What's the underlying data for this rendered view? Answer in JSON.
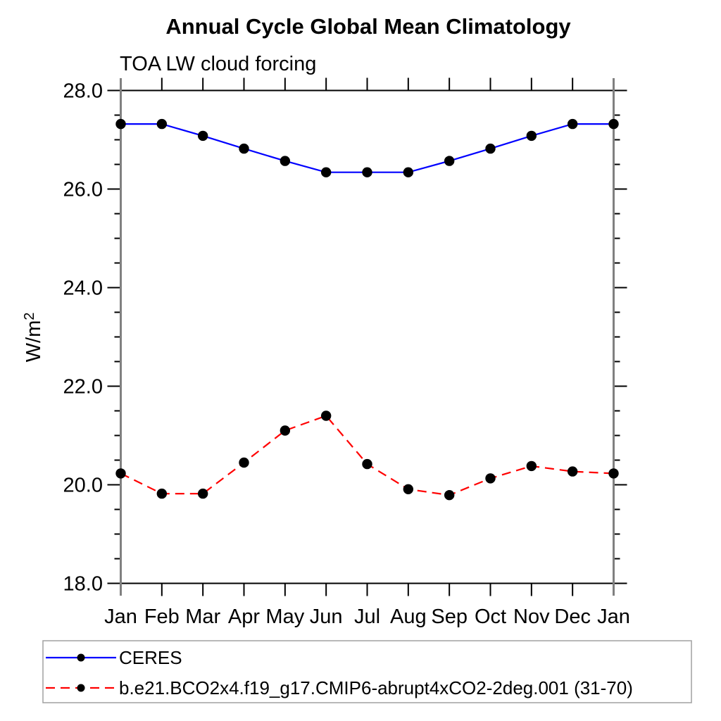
{
  "chart_data": {
    "type": "line",
    "title": "Annual Cycle Global Mean Climatology",
    "subtitle": "TOA LW cloud forcing",
    "ylabel": {
      "base": "W/m",
      "sup": "2"
    },
    "categories": [
      "Jan",
      "Feb",
      "Mar",
      "Apr",
      "May",
      "Jun",
      "Jul",
      "Aug",
      "Sep",
      "Oct",
      "Nov",
      "Dec",
      "Jan"
    ],
    "ylim": [
      18.0,
      28.0
    ],
    "ytick_major": [
      18,
      20,
      22,
      24,
      26,
      28
    ],
    "ytick_labels": [
      "18.0",
      "20.0",
      "22.0",
      "24.0",
      "26.0",
      "28.0"
    ],
    "ytick_minor_step": 0.5,
    "grid": false,
    "legend_position": "bottom-left-box",
    "series": [
      {
        "name": "CERES",
        "color": "#0000ff",
        "style": "solid",
        "marker": "circle",
        "marker_color": "#000000",
        "values": [
          27.32,
          27.32,
          27.08,
          26.82,
          26.57,
          26.34,
          26.34,
          26.34,
          26.57,
          26.82,
          27.08,
          27.32,
          27.32
        ]
      },
      {
        "name": "b.e21.BCO2x4.f19_g17.CMIP6-abrupt4xCO2-2deg.001 (31-70)",
        "color": "#ff0000",
        "style": "dashed",
        "marker": "circle",
        "marker_color": "#000000",
        "values": [
          20.23,
          19.82,
          19.82,
          20.45,
          21.1,
          21.4,
          20.42,
          19.91,
          19.79,
          20.13,
          20.38,
          20.27,
          20.23
        ]
      }
    ]
  },
  "colors": {
    "frame": "#000000",
    "vertical_axis": "#808080",
    "legend_border": "#a0a0a0"
  }
}
